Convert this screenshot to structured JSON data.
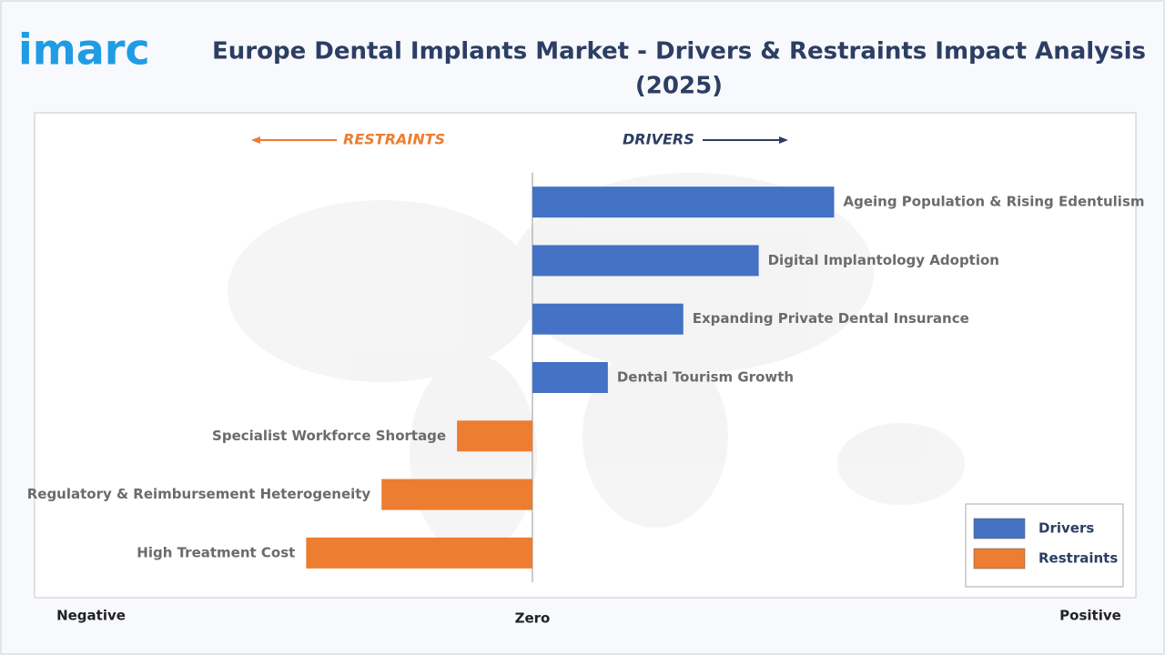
{
  "logo": "imarc",
  "chart_data": {
    "type": "bar",
    "orientation": "horizontal",
    "title": "Europe Dental Implants Market - Drivers & Restraints Impact Analysis",
    "subtitle": "(2025)",
    "annotations": {
      "left": "RESTRAINTS",
      "right": "DRIVERS"
    },
    "axis_labels": {
      "negative": "Negative",
      "zero": "Zero",
      "positive": "Positive"
    },
    "categories": [
      "Ageing Population & Rising Edentulism",
      "Digital Implantology Adoption",
      "Expanding Private Dental Insurance",
      "Dental Tourism Growth",
      "Specialist Workforce Shortage",
      "Regulatory & Reimbursement Heterogeneity",
      "High Treatment Cost"
    ],
    "series": [
      {
        "name": "Drivers",
        "color": "#4472c4",
        "values": [
          4,
          3,
          2,
          1,
          null,
          null,
          null
        ]
      },
      {
        "name": "Restraints",
        "color": "#ed7d31",
        "values": [
          null,
          null,
          null,
          null,
          -1,
          -2,
          -3
        ]
      }
    ],
    "xlim": [
      -6.6,
      8
    ],
    "legend": "lower-right"
  }
}
